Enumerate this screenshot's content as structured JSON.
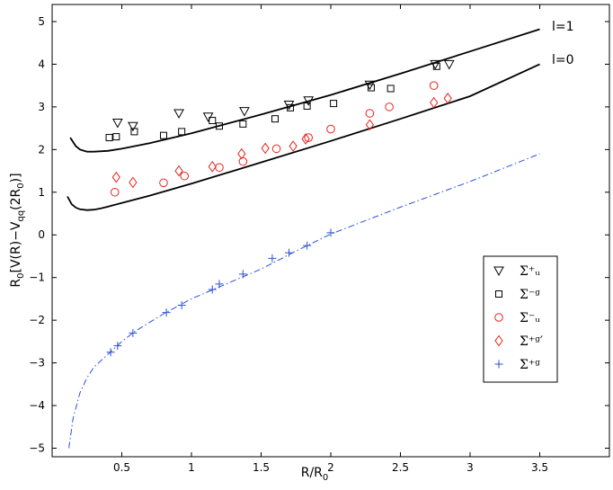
{
  "chart_data": {
    "type": "scatter",
    "title": "",
    "xlabel": "R/R",
    "xlabel_sub": "0",
    "ylabel_parts": [
      {
        "t": "R",
        "s": "n"
      },
      {
        "t": "0",
        "s": "sub"
      },
      {
        "t": "[V(R)−V",
        "s": "n"
      },
      {
        "t": "qq",
        "s": "sub"
      },
      {
        "t": "(2R",
        "s": "n"
      },
      {
        "t": "0",
        "s": "sub"
      },
      {
        "t": ")]",
        "s": "n"
      }
    ],
    "xlim": [
      0,
      4
    ],
    "ylim": [
      -5.2,
      5.4
    ],
    "xticks": [
      0.5,
      1,
      1.5,
      2,
      2.5,
      3,
      3.5
    ],
    "xtick_labels": [
      "0.5",
      "1",
      "1.5",
      "2",
      "2.5",
      "3",
      "3.5"
    ],
    "yticks": [
      -5,
      -4,
      -3,
      -2,
      -1,
      0,
      1,
      2,
      3,
      4,
      5
    ],
    "ytick_labels": [
      "−5",
      "−4",
      "−3",
      "−2",
      "−1",
      "0",
      "1",
      "2",
      "3",
      "4",
      "5"
    ],
    "grid": false,
    "legend_position": "lower-right",
    "curves": [
      {
        "label": "l=1",
        "color": "#000000",
        "style": "solid",
        "x": [
          0.13,
          0.17,
          0.2,
          0.25,
          0.3,
          0.4,
          0.5,
          0.7,
          1.0,
          1.5,
          2.0,
          2.5,
          3.0,
          3.5
        ],
        "y": [
          2.28,
          2.08,
          2.0,
          1.95,
          1.95,
          1.97,
          2.02,
          2.15,
          2.38,
          2.82,
          3.28,
          3.78,
          4.3,
          4.82
        ]
      },
      {
        "label": "l=0",
        "color": "#000000",
        "style": "solid",
        "x": [
          0.11,
          0.14,
          0.17,
          0.2,
          0.25,
          0.3,
          0.35,
          0.4,
          0.5,
          0.7,
          1.0,
          1.5,
          2.0,
          2.5,
          3.0,
          3.5
        ],
        "y": [
          0.9,
          0.72,
          0.64,
          0.6,
          0.58,
          0.59,
          0.62,
          0.66,
          0.75,
          0.92,
          1.2,
          1.7,
          2.2,
          2.72,
          3.25,
          4.0
        ]
      },
      {
        "label": "",
        "color": "#2a50d8",
        "style": "dashdot",
        "x": [
          0.12,
          0.15,
          0.2,
          0.25,
          0.3,
          0.4,
          0.5,
          0.6,
          0.8,
          1.0,
          1.25,
          1.5,
          1.75,
          2.0,
          2.5,
          3.0,
          3.5
        ],
        "y": [
          -5.0,
          -4.3,
          -3.7,
          -3.35,
          -3.1,
          -2.8,
          -2.5,
          -2.25,
          -1.85,
          -1.5,
          -1.15,
          -0.8,
          -0.38,
          0.02,
          0.65,
          1.25,
          1.9
        ]
      }
    ],
    "series": [
      {
        "name": "Σ⁺ᵤ",
        "marker": "triangle-down",
        "color": "#000000",
        "x": [
          0.47,
          0.58,
          0.91,
          1.12,
          1.38,
          1.7,
          1.84,
          2.28,
          2.75,
          2.85
        ],
        "y": [
          2.63,
          2.55,
          2.85,
          2.77,
          2.9,
          3.05,
          3.15,
          3.52,
          4.0,
          4.0
        ]
      },
      {
        "name": "Σ⁻ᵍ",
        "marker": "square",
        "color": "#000000",
        "x": [
          0.41,
          0.46,
          0.59,
          0.8,
          0.93,
          1.15,
          1.2,
          1.37,
          1.6,
          1.71,
          1.83,
          2.02,
          2.29,
          2.43,
          2.76
        ],
        "y": [
          2.28,
          2.3,
          2.42,
          2.33,
          2.42,
          2.68,
          2.55,
          2.6,
          2.72,
          2.98,
          3.02,
          3.08,
          3.45,
          3.43,
          3.95
        ]
      },
      {
        "name": "Σ⁻ᵤ",
        "marker": "circle",
        "color": "#e8231c",
        "x": [
          0.45,
          0.8,
          0.95,
          1.2,
          1.37,
          1.61,
          1.84,
          2.0,
          2.28,
          2.42,
          2.74
        ],
        "y": [
          1.0,
          1.22,
          1.38,
          1.58,
          1.72,
          2.02,
          2.28,
          2.48,
          2.85,
          3.0,
          3.5
        ]
      },
      {
        "name": "Σ⁺ᵍ′",
        "marker": "diamond",
        "color": "#e8231c",
        "x": [
          0.46,
          0.58,
          0.91,
          1.15,
          1.36,
          1.53,
          1.73,
          1.82,
          2.28,
          2.74,
          2.84
        ],
        "y": [
          1.35,
          1.23,
          1.5,
          1.6,
          1.9,
          2.03,
          2.08,
          2.25,
          2.58,
          3.1,
          3.2
        ]
      },
      {
        "name": "Σ⁺ᵍ",
        "marker": "plus",
        "color": "#2a50d8",
        "x": [
          0.42,
          0.47,
          0.58,
          0.82,
          0.93,
          1.15,
          1.2,
          1.37,
          1.58,
          1.7,
          1.83,
          2.0
        ],
        "y": [
          -2.75,
          -2.6,
          -2.3,
          -1.82,
          -1.65,
          -1.28,
          -1.15,
          -0.92,
          -0.55,
          -0.42,
          -0.25,
          0.05
        ]
      }
    ]
  }
}
